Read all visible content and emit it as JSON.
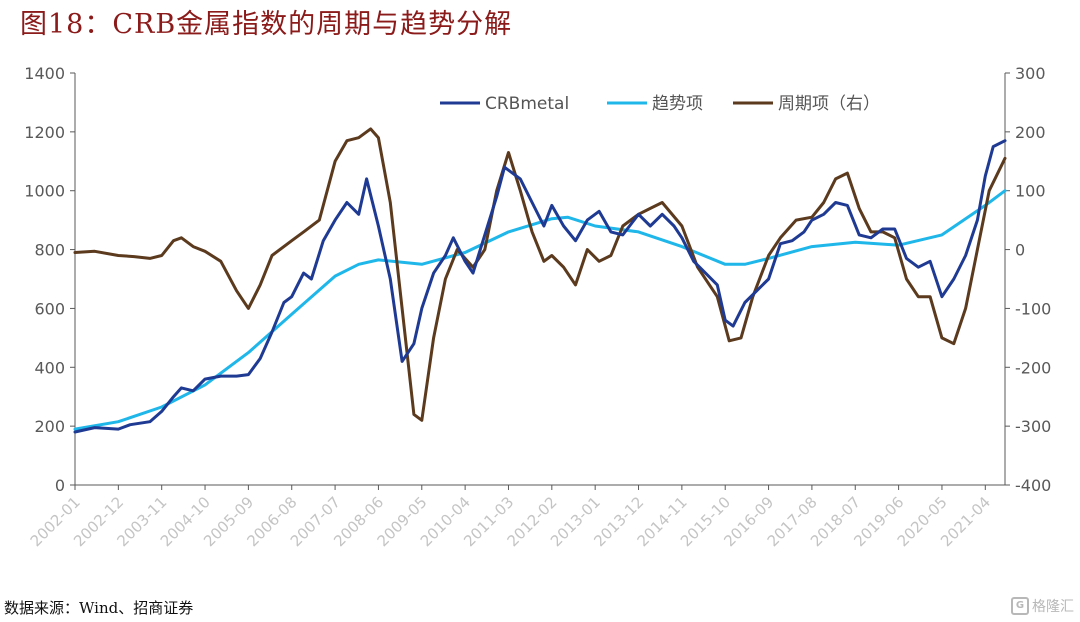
{
  "title": "图18：CRB金属指数的周期与趋势分解",
  "source": "数据来源：Wind、招商证券",
  "watermark": {
    "text": "格隆汇",
    "icon": "g-logo-icon"
  },
  "colors": {
    "crb": "#1f3a93",
    "trend": "#1fb6ea",
    "cycle": "#5b3a1e",
    "axis": "#595959",
    "tick_text": "#595959"
  },
  "chart_data": {
    "type": "line",
    "title": "",
    "xlabel": "",
    "ylabel": "",
    "x_ticks": [
      "2002-01",
      "2002-12",
      "2003-11",
      "2004-10",
      "2005-09",
      "2006-08",
      "2007-07",
      "2008-06",
      "2009-05",
      "2010-04",
      "2011-03",
      "2012-02",
      "2013-01",
      "2013-12",
      "2014-11",
      "2015-10",
      "2016-09",
      "2017-08",
      "2018-07",
      "2019-06",
      "2020-05",
      "2021-04"
    ],
    "x_range": [
      "2002-01",
      "2021-09"
    ],
    "y_left": {
      "range": [
        0,
        1400
      ],
      "ticks": [
        0,
        200,
        400,
        600,
        800,
        1000,
        1200,
        1400
      ]
    },
    "y_right": {
      "range": [
        -400,
        300
      ],
      "ticks": [
        -400,
        -300,
        -200,
        -100,
        0,
        100,
        200,
        300
      ]
    },
    "grid": false,
    "legend_position": "top-right",
    "series": [
      {
        "name": "CRBmetal",
        "axis": "left",
        "color": "#1f3a93",
        "points": [
          [
            "2002-01",
            180
          ],
          [
            "2002-06",
            195
          ],
          [
            "2002-12",
            190
          ],
          [
            "2003-03",
            205
          ],
          [
            "2003-08",
            215
          ],
          [
            "2003-11",
            250
          ],
          [
            "2004-02",
            300
          ],
          [
            "2004-04",
            330
          ],
          [
            "2004-07",
            320
          ],
          [
            "2004-10",
            360
          ],
          [
            "2005-02",
            370
          ],
          [
            "2005-06",
            370
          ],
          [
            "2005-09",
            375
          ],
          [
            "2005-12",
            430
          ],
          [
            "2006-03",
            520
          ],
          [
            "2006-06",
            620
          ],
          [
            "2006-08",
            640
          ],
          [
            "2006-11",
            720
          ],
          [
            "2007-01",
            700
          ],
          [
            "2007-04",
            830
          ],
          [
            "2007-07",
            900
          ],
          [
            "2007-10",
            960
          ],
          [
            "2008-01",
            920
          ],
          [
            "2008-03",
            1040
          ],
          [
            "2008-06",
            880
          ],
          [
            "2008-09",
            700
          ],
          [
            "2008-12",
            420
          ],
          [
            "2009-03",
            480
          ],
          [
            "2009-05",
            600
          ],
          [
            "2009-08",
            720
          ],
          [
            "2009-11",
            780
          ],
          [
            "2010-01",
            840
          ],
          [
            "2010-04",
            760
          ],
          [
            "2010-06",
            720
          ],
          [
            "2010-09",
            850
          ],
          [
            "2010-12",
            980
          ],
          [
            "2011-02",
            1080
          ],
          [
            "2011-04",
            1060
          ],
          [
            "2011-06",
            1040
          ],
          [
            "2011-09",
            960
          ],
          [
            "2011-12",
            880
          ],
          [
            "2012-02",
            950
          ],
          [
            "2012-05",
            880
          ],
          [
            "2012-08",
            830
          ],
          [
            "2012-11",
            900
          ],
          [
            "2013-02",
            930
          ],
          [
            "2013-05",
            860
          ],
          [
            "2013-08",
            850
          ],
          [
            "2013-12",
            920
          ],
          [
            "2014-03",
            880
          ],
          [
            "2014-06",
            920
          ],
          [
            "2014-09",
            880
          ],
          [
            "2014-11",
            840
          ],
          [
            "2015-02",
            760
          ],
          [
            "2015-05",
            720
          ],
          [
            "2015-08",
            680
          ],
          [
            "2015-10",
            560
          ],
          [
            "2015-12",
            540
          ],
          [
            "2016-03",
            620
          ],
          [
            "2016-06",
            660
          ],
          [
            "2016-09",
            700
          ],
          [
            "2016-12",
            820
          ],
          [
            "2017-03",
            830
          ],
          [
            "2017-06",
            860
          ],
          [
            "2017-08",
            900
          ],
          [
            "2017-11",
            920
          ],
          [
            "2018-02",
            960
          ],
          [
            "2018-05",
            950
          ],
          [
            "2018-08",
            850
          ],
          [
            "2018-11",
            840
          ],
          [
            "2019-02",
            870
          ],
          [
            "2019-05",
            870
          ],
          [
            "2019-08",
            770
          ],
          [
            "2019-11",
            740
          ],
          [
            "2020-02",
            760
          ],
          [
            "2020-05",
            640
          ],
          [
            "2020-08",
            700
          ],
          [
            "2020-11",
            780
          ],
          [
            "2021-02",
            900
          ],
          [
            "2021-04",
            1050
          ],
          [
            "2021-06",
            1150
          ],
          [
            "2021-09",
            1170
          ]
        ]
      },
      {
        "name": "趋势项",
        "axis": "left",
        "color": "#1fb6ea",
        "points": [
          [
            "2002-01",
            190
          ],
          [
            "2002-12",
            215
          ],
          [
            "2003-11",
            265
          ],
          [
            "2004-10",
            340
          ],
          [
            "2005-09",
            450
          ],
          [
            "2006-08",
            580
          ],
          [
            "2007-07",
            710
          ],
          [
            "2008-01",
            750
          ],
          [
            "2008-06",
            765
          ],
          [
            "2009-05",
            750
          ],
          [
            "2010-04",
            790
          ],
          [
            "2011-03",
            860
          ],
          [
            "2012-02",
            905
          ],
          [
            "2012-06",
            910
          ],
          [
            "2013-01",
            880
          ],
          [
            "2013-12",
            860
          ],
          [
            "2014-11",
            810
          ],
          [
            "2015-10",
            750
          ],
          [
            "2016-03",
            750
          ],
          [
            "2016-09",
            770
          ],
          [
            "2017-08",
            810
          ],
          [
            "2018-07",
            825
          ],
          [
            "2019-06",
            815
          ],
          [
            "2020-05",
            850
          ],
          [
            "2021-04",
            950
          ],
          [
            "2021-09",
            1000
          ]
        ]
      },
      {
        "name": "周期项（右）",
        "axis": "right",
        "color": "#5b3a1e",
        "points": [
          [
            "2002-01",
            -5
          ],
          [
            "2002-06",
            -3
          ],
          [
            "2002-12",
            -10
          ],
          [
            "2003-04",
            -12
          ],
          [
            "2003-08",
            -15
          ],
          [
            "2003-11",
            -10
          ],
          [
            "2004-02",
            15
          ],
          [
            "2004-04",
            20
          ],
          [
            "2004-07",
            5
          ],
          [
            "2004-10",
            -3
          ],
          [
            "2005-02",
            -20
          ],
          [
            "2005-06",
            -70
          ],
          [
            "2005-09",
            -100
          ],
          [
            "2005-12",
            -60
          ],
          [
            "2006-03",
            -10
          ],
          [
            "2006-08",
            15
          ],
          [
            "2006-11",
            30
          ],
          [
            "2007-03",
            50
          ],
          [
            "2007-07",
            150
          ],
          [
            "2007-10",
            185
          ],
          [
            "2008-01",
            190
          ],
          [
            "2008-04",
            205
          ],
          [
            "2008-06",
            190
          ],
          [
            "2008-09",
            80
          ],
          [
            "2008-12",
            -100
          ],
          [
            "2009-03",
            -280
          ],
          [
            "2009-05",
            -290
          ],
          [
            "2009-08",
            -150
          ],
          [
            "2009-11",
            -50
          ],
          [
            "2010-02",
            0
          ],
          [
            "2010-06",
            -30
          ],
          [
            "2010-09",
            0
          ],
          [
            "2010-12",
            100
          ],
          [
            "2011-03",
            165
          ],
          [
            "2011-06",
            100
          ],
          [
            "2011-09",
            30
          ],
          [
            "2011-12",
            -20
          ],
          [
            "2012-02",
            -10
          ],
          [
            "2012-05",
            -30
          ],
          [
            "2012-08",
            -60
          ],
          [
            "2012-11",
            0
          ],
          [
            "2013-02",
            -20
          ],
          [
            "2013-05",
            -10
          ],
          [
            "2013-08",
            40
          ],
          [
            "2013-12",
            60
          ],
          [
            "2014-03",
            70
          ],
          [
            "2014-06",
            80
          ],
          [
            "2014-11",
            40
          ],
          [
            "2015-03",
            -30
          ],
          [
            "2015-08",
            -80
          ],
          [
            "2015-11",
            -155
          ],
          [
            "2016-02",
            -150
          ],
          [
            "2016-05",
            -80
          ],
          [
            "2016-09",
            -10
          ],
          [
            "2016-12",
            20
          ],
          [
            "2017-04",
            50
          ],
          [
            "2017-08",
            55
          ],
          [
            "2017-11",
            80
          ],
          [
            "2018-02",
            120
          ],
          [
            "2018-05",
            130
          ],
          [
            "2018-08",
            70
          ],
          [
            "2018-11",
            30
          ],
          [
            "2019-02",
            30
          ],
          [
            "2019-05",
            20
          ],
          [
            "2019-08",
            -50
          ],
          [
            "2019-11",
            -80
          ],
          [
            "2020-02",
            -80
          ],
          [
            "2020-05",
            -150
          ],
          [
            "2020-08",
            -160
          ],
          [
            "2020-11",
            -100
          ],
          [
            "2021-02",
            0
          ],
          [
            "2021-05",
            100
          ],
          [
            "2021-09",
            155
          ]
        ]
      }
    ]
  }
}
